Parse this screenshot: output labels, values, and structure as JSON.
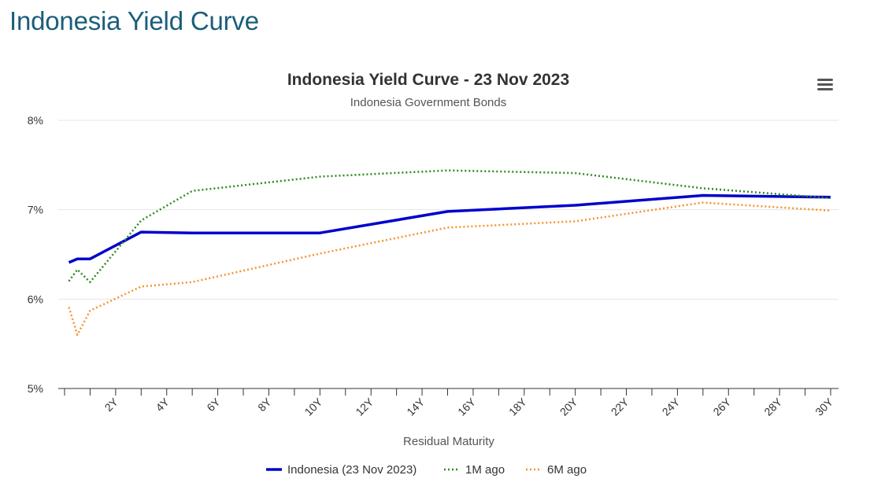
{
  "page": {
    "heading": "Indonesia Yield Curve"
  },
  "chart_data": {
    "type": "line",
    "title": "Indonesia Yield Curve - 23 Nov 2023",
    "subtitle": "Indonesia Government Bonds",
    "xlabel": "Residual Maturity",
    "ylabel": "",
    "xlim": [
      0,
      30
    ],
    "ylim": [
      5,
      8
    ],
    "y_ticks": [
      {
        "value": 5,
        "label": "5%"
      },
      {
        "value": 6,
        "label": "6%"
      },
      {
        "value": 7,
        "label": "7%"
      },
      {
        "value": 8,
        "label": "8%"
      }
    ],
    "x_minor_ticks": [
      0,
      1,
      2,
      3,
      4,
      5,
      6,
      7,
      8,
      9,
      10,
      11,
      12,
      13,
      14,
      15,
      16,
      17,
      18,
      19,
      20,
      21,
      22,
      23,
      24,
      25,
      26,
      27,
      28,
      29,
      30
    ],
    "x_tick_labels": [
      {
        "value": 2,
        "label": "2Y"
      },
      {
        "value": 4,
        "label": "4Y"
      },
      {
        "value": 6,
        "label": "6Y"
      },
      {
        "value": 8,
        "label": "8Y"
      },
      {
        "value": 10,
        "label": "10Y"
      },
      {
        "value": 12,
        "label": "12Y"
      },
      {
        "value": 14,
        "label": "14Y"
      },
      {
        "value": 16,
        "label": "16Y"
      },
      {
        "value": 18,
        "label": "18Y"
      },
      {
        "value": 20,
        "label": "20Y"
      },
      {
        "value": 22,
        "label": "22Y"
      },
      {
        "value": 24,
        "label": "24Y"
      },
      {
        "value": 26,
        "label": "26Y"
      },
      {
        "value": 28,
        "label": "28Y"
      },
      {
        "value": 30,
        "label": "30Y"
      }
    ],
    "grid": true,
    "legend_position": "bottom-center",
    "series": [
      {
        "name": "Indonesia (23 Nov 2023)",
        "color": "#0000cc",
        "style": "solid",
        "points": [
          [
            0.17,
            6.41
          ],
          [
            0.5,
            6.45
          ],
          [
            1,
            6.45
          ],
          [
            3,
            6.75
          ],
          [
            5,
            6.74
          ],
          [
            10,
            6.74
          ],
          [
            15,
            6.98
          ],
          [
            20,
            7.05
          ],
          [
            25,
            7.16
          ],
          [
            30,
            7.14
          ]
        ]
      },
      {
        "name": "1M ago",
        "color": "#2e8b1e",
        "style": "dotted",
        "points": [
          [
            0.17,
            6.2
          ],
          [
            0.5,
            6.33
          ],
          [
            1,
            6.19
          ],
          [
            3,
            6.88
          ],
          [
            5,
            7.21
          ],
          [
            10,
            7.37
          ],
          [
            15,
            7.44
          ],
          [
            20,
            7.41
          ],
          [
            25,
            7.24
          ],
          [
            30,
            7.13
          ]
        ]
      },
      {
        "name": "6M ago",
        "color": "#f5922e",
        "style": "dotted",
        "points": [
          [
            0.17,
            5.91
          ],
          [
            0.5,
            5.6
          ],
          [
            1,
            5.87
          ],
          [
            3,
            6.14
          ],
          [
            5,
            6.19
          ],
          [
            10,
            6.51
          ],
          [
            15,
            6.8
          ],
          [
            20,
            6.87
          ],
          [
            25,
            7.08
          ],
          [
            30,
            6.99
          ]
        ]
      }
    ]
  },
  "icons": {
    "menu": "hamburger-menu-icon"
  }
}
